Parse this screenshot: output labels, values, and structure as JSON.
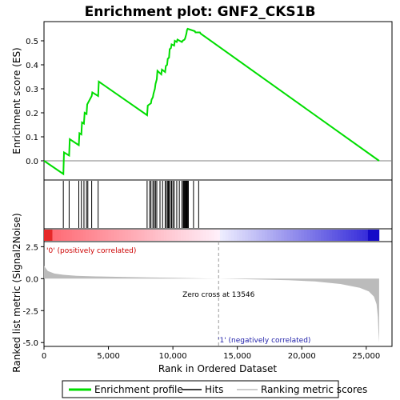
{
  "chart_data": {
    "type": "line",
    "title": "Enrichment plot: GNF2_CKS1B",
    "x_axis": {
      "label": "Rank in Ordered Dataset",
      "range": [
        0,
        27000
      ],
      "ticks": [
        0,
        5000,
        10000,
        15000,
        20000,
        25000
      ],
      "tick_labels": [
        "0",
        "5,000",
        "10,000",
        "15,000",
        "20,000",
        "25,000"
      ]
    },
    "es_panel": {
      "ylabel": "Enrichment score (ES)",
      "ylim": [
        -0.08,
        0.58
      ],
      "ticks": [
        0.0,
        0.1,
        0.2,
        0.3,
        0.4,
        0.5
      ],
      "tick_labels": [
        "0.0",
        "0.1",
        "0.2",
        "0.3",
        "0.4",
        "0.5"
      ],
      "color": "#00dd00"
    },
    "metric_panel": {
      "ylabel": "Ranked list metric (Signal2Noise)",
      "ylim": [
        -5.3,
        2.9
      ],
      "ticks": [
        2.5,
        0.0,
        -2.5,
        -5.0
      ],
      "tick_labels": [
        "2.5",
        "0.0",
        "-2.5",
        "-5.0"
      ],
      "zero_cross": 13546,
      "zero_cross_label": "Zero cross at 13546",
      "pos_label": "'0' (positively correlated)",
      "neg_label": "'1' (negatively correlated)"
    },
    "series": [
      {
        "name": "Enrichment profile",
        "x": [
          0,
          1500,
          1550,
          1950,
          2000,
          2700,
          2750,
          2900,
          2950,
          3100,
          3150,
          3300,
          3350,
          3700,
          3750,
          4200,
          4250,
          8000,
          8050,
          8300,
          8350,
          8450,
          8500,
          8600,
          8650,
          8750,
          8800,
          9100,
          9150,
          9400,
          9450,
          9550,
          9600,
          9700,
          9750,
          9850,
          9900,
          10100,
          10150,
          10300,
          10350,
          10700,
          10750,
          10900,
          10950,
          11000,
          11050,
          11100,
          11150,
          11700,
          11750,
          12100,
          12150,
          26000
        ],
        "y": [
          0.0,
          -0.055,
          0.035,
          0.022,
          0.09,
          0.065,
          0.115,
          0.11,
          0.16,
          0.155,
          0.2,
          0.195,
          0.235,
          0.27,
          0.285,
          0.27,
          0.33,
          0.19,
          0.23,
          0.24,
          0.255,
          0.265,
          0.28,
          0.3,
          0.32,
          0.34,
          0.375,
          0.36,
          0.38,
          0.37,
          0.395,
          0.4,
          0.425,
          0.43,
          0.465,
          0.47,
          0.485,
          0.48,
          0.5,
          0.495,
          0.505,
          0.495,
          0.5,
          0.505,
          0.51,
          0.52,
          0.53,
          0.545,
          0.55,
          0.54,
          0.535,
          0.535,
          0.53,
          0.0
        ]
      }
    ],
    "hits": [
      1500,
      1950,
      2700,
      2900,
      3100,
      3300,
      3400,
      3700,
      4200,
      8000,
      8200,
      8300,
      8450,
      8550,
      8650,
      8750,
      9000,
      9200,
      9400,
      9500,
      9600,
      9650,
      9700,
      9800,
      9900,
      10000,
      10100,
      10300,
      10500,
      10700,
      10800,
      10850,
      10900,
      10950,
      11000,
      11050,
      11100,
      11150,
      11200,
      11600,
      12000
    ],
    "metric_curve": {
      "x": [
        0,
        300,
        800,
        1500,
        2500,
        4000,
        6000,
        8000,
        10000,
        12000,
        13546,
        16000,
        19000,
        21000,
        23000,
        24500,
        25200,
        25600,
        25800,
        25900,
        25950,
        26000
      ],
      "y": [
        1.0,
        0.6,
        0.4,
        0.3,
        0.22,
        0.18,
        0.14,
        0.1,
        0.07,
        0.03,
        0.0,
        -0.05,
        -0.12,
        -0.22,
        -0.42,
        -0.72,
        -1.0,
        -1.4,
        -2.0,
        -3.0,
        -4.2,
        -5.0
      ]
    },
    "legend": {
      "placement": "bottom",
      "items": [
        {
          "label": "Enrichment profile",
          "color": "#00dd00",
          "kind": "line"
        },
        {
          "label": "Hits",
          "color": "#000000",
          "kind": "line"
        },
        {
          "label": "Ranking metric scores",
          "color": "#bbbbbb",
          "kind": "line"
        }
      ]
    }
  }
}
